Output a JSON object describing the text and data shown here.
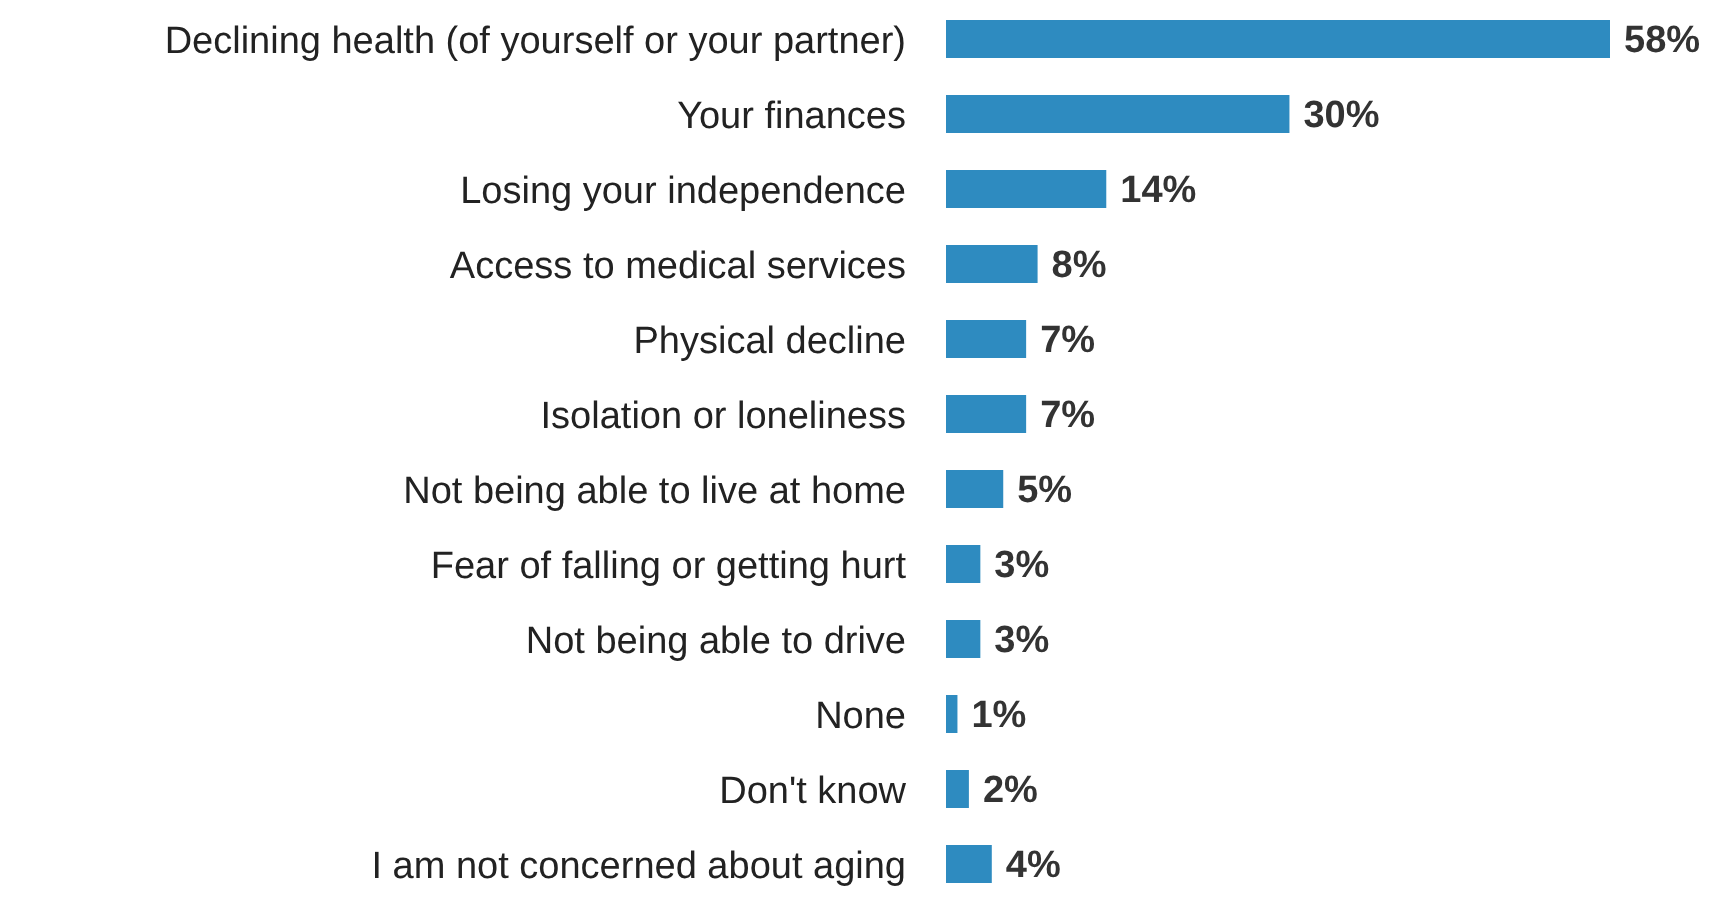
{
  "chart_data": {
    "type": "bar",
    "orientation": "horizontal",
    "categories": [
      "Declining health (of yourself or your partner)",
      "Your finances",
      "Losing your independence",
      "Access to medical services",
      "Physical decline",
      "Isolation or loneliness",
      "Not being able to live at home",
      "Fear of falling or getting hurt",
      "Not being able to drive",
      "None",
      "Don't know",
      "I am not concerned about aging"
    ],
    "values": [
      58,
      30,
      14,
      8,
      7,
      7,
      5,
      3,
      3,
      1,
      2,
      4
    ],
    "value_labels": [
      "58%",
      "30%",
      "14%",
      "8%",
      "7%",
      "7%",
      "5%",
      "3%",
      "3%",
      "1%",
      "2%",
      "4%"
    ],
    "color": "#2e8bc0"
  }
}
